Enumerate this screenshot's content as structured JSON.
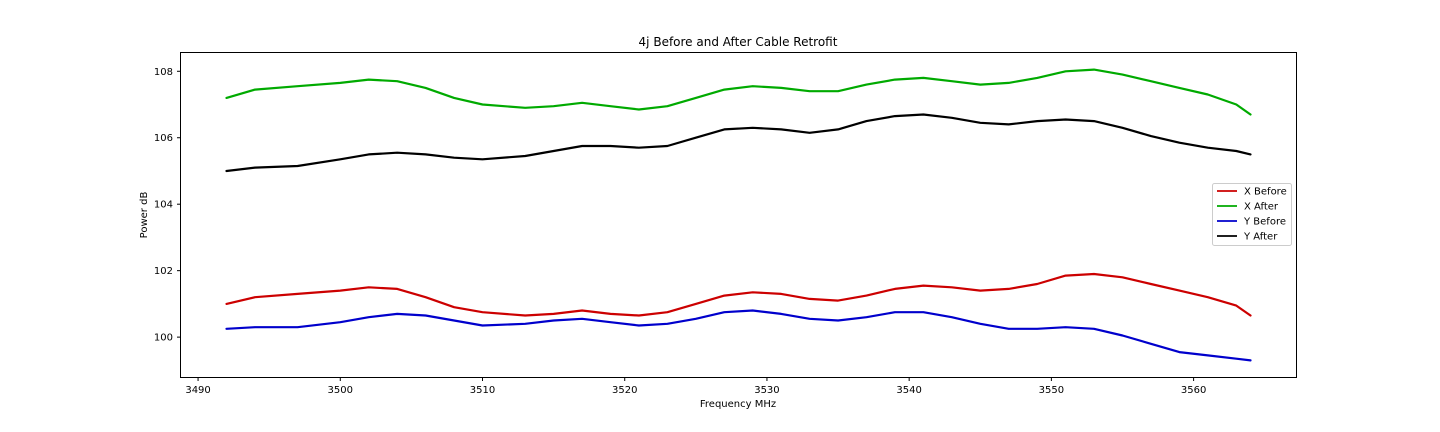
{
  "chart_data": {
    "type": "line",
    "title": "4j Before and After Cable Retrofit",
    "xlabel": "Frequency MHz",
    "ylabel": "Power dB",
    "xlim": [
      3488.8,
      3567.2
    ],
    "ylim": [
      98.8,
      108.55
    ],
    "xticks": [
      3490,
      3500,
      3510,
      3520,
      3530,
      3540,
      3550,
      3560
    ],
    "yticks": [
      100,
      102,
      104,
      106,
      108
    ],
    "grid": false,
    "legend_position": "center-right",
    "series": [
      {
        "name": "X Before",
        "color": "#cc0000",
        "points": [
          [
            3492,
            101.0
          ],
          [
            3494,
            101.2
          ],
          [
            3497,
            101.3
          ],
          [
            3500,
            101.4
          ],
          [
            3502,
            101.5
          ],
          [
            3504,
            101.45
          ],
          [
            3506,
            101.2
          ],
          [
            3508,
            100.9
          ],
          [
            3510,
            100.75
          ],
          [
            3513,
            100.65
          ],
          [
            3515,
            100.7
          ],
          [
            3517,
            100.8
          ],
          [
            3519,
            100.7
          ],
          [
            3521,
            100.65
          ],
          [
            3523,
            100.75
          ],
          [
            3525,
            101.0
          ],
          [
            3527,
            101.25
          ],
          [
            3529,
            101.35
          ],
          [
            3531,
            101.3
          ],
          [
            3533,
            101.15
          ],
          [
            3535,
            101.1
          ],
          [
            3537,
            101.25
          ],
          [
            3539,
            101.45
          ],
          [
            3541,
            101.55
          ],
          [
            3543,
            101.5
          ],
          [
            3545,
            101.4
          ],
          [
            3547,
            101.45
          ],
          [
            3549,
            101.6
          ],
          [
            3551,
            101.85
          ],
          [
            3553,
            101.9
          ],
          [
            3555,
            101.8
          ],
          [
            3557,
            101.6
          ],
          [
            3559,
            101.4
          ],
          [
            3561,
            101.2
          ],
          [
            3563,
            100.95
          ],
          [
            3564,
            100.65
          ]
        ]
      },
      {
        "name": "X After",
        "color": "#00aa00",
        "points": [
          [
            3492,
            107.2
          ],
          [
            3494,
            107.45
          ],
          [
            3497,
            107.55
          ],
          [
            3500,
            107.65
          ],
          [
            3502,
            107.75
          ],
          [
            3504,
            107.7
          ],
          [
            3506,
            107.5
          ],
          [
            3508,
            107.2
          ],
          [
            3510,
            107.0
          ],
          [
            3513,
            106.9
          ],
          [
            3515,
            106.95
          ],
          [
            3517,
            107.05
          ],
          [
            3519,
            106.95
          ],
          [
            3521,
            106.85
          ],
          [
            3523,
            106.95
          ],
          [
            3525,
            107.2
          ],
          [
            3527,
            107.45
          ],
          [
            3529,
            107.55
          ],
          [
            3531,
            107.5
          ],
          [
            3533,
            107.4
          ],
          [
            3535,
            107.4
          ],
          [
            3537,
            107.6
          ],
          [
            3539,
            107.75
          ],
          [
            3541,
            107.8
          ],
          [
            3543,
            107.7
          ],
          [
            3545,
            107.6
          ],
          [
            3547,
            107.65
          ],
          [
            3549,
            107.8
          ],
          [
            3551,
            108.0
          ],
          [
            3553,
            108.05
          ],
          [
            3555,
            107.9
          ],
          [
            3557,
            107.7
          ],
          [
            3559,
            107.5
          ],
          [
            3561,
            107.3
          ],
          [
            3563,
            107.0
          ],
          [
            3564,
            106.7
          ]
        ]
      },
      {
        "name": "Y Before",
        "color": "#0000cc",
        "points": [
          [
            3492,
            100.25
          ],
          [
            3494,
            100.3
          ],
          [
            3497,
            100.3
          ],
          [
            3500,
            100.45
          ],
          [
            3502,
            100.6
          ],
          [
            3504,
            100.7
          ],
          [
            3506,
            100.65
          ],
          [
            3508,
            100.5
          ],
          [
            3510,
            100.35
          ],
          [
            3513,
            100.4
          ],
          [
            3515,
            100.5
          ],
          [
            3517,
            100.55
          ],
          [
            3519,
            100.45
          ],
          [
            3521,
            100.35
          ],
          [
            3523,
            100.4
          ],
          [
            3525,
            100.55
          ],
          [
            3527,
            100.75
          ],
          [
            3529,
            100.8
          ],
          [
            3531,
            100.7
          ],
          [
            3533,
            100.55
          ],
          [
            3535,
            100.5
          ],
          [
            3537,
            100.6
          ],
          [
            3539,
            100.75
          ],
          [
            3541,
            100.75
          ],
          [
            3543,
            100.6
          ],
          [
            3545,
            100.4
          ],
          [
            3547,
            100.25
          ],
          [
            3549,
            100.25
          ],
          [
            3551,
            100.3
          ],
          [
            3553,
            100.25
          ],
          [
            3555,
            100.05
          ],
          [
            3557,
            99.8
          ],
          [
            3559,
            99.55
          ],
          [
            3561,
            99.45
          ],
          [
            3563,
            99.35
          ],
          [
            3564,
            99.3
          ]
        ]
      },
      {
        "name": "Y After",
        "color": "#000000",
        "points": [
          [
            3492,
            105.0
          ],
          [
            3494,
            105.1
          ],
          [
            3497,
            105.15
          ],
          [
            3500,
            105.35
          ],
          [
            3502,
            105.5
          ],
          [
            3504,
            105.55
          ],
          [
            3506,
            105.5
          ],
          [
            3508,
            105.4
          ],
          [
            3510,
            105.35
          ],
          [
            3513,
            105.45
          ],
          [
            3515,
            105.6
          ],
          [
            3517,
            105.75
          ],
          [
            3519,
            105.75
          ],
          [
            3521,
            105.7
          ],
          [
            3523,
            105.75
          ],
          [
            3525,
            106.0
          ],
          [
            3527,
            106.25
          ],
          [
            3529,
            106.3
          ],
          [
            3531,
            106.25
          ],
          [
            3533,
            106.15
          ],
          [
            3535,
            106.25
          ],
          [
            3537,
            106.5
          ],
          [
            3539,
            106.65
          ],
          [
            3541,
            106.7
          ],
          [
            3543,
            106.6
          ],
          [
            3545,
            106.45
          ],
          [
            3547,
            106.4
          ],
          [
            3549,
            106.5
          ],
          [
            3551,
            106.55
          ],
          [
            3553,
            106.5
          ],
          [
            3555,
            106.3
          ],
          [
            3557,
            106.05
          ],
          [
            3559,
            105.85
          ],
          [
            3561,
            105.7
          ],
          [
            3563,
            105.6
          ],
          [
            3564,
            105.5
          ]
        ]
      }
    ]
  }
}
